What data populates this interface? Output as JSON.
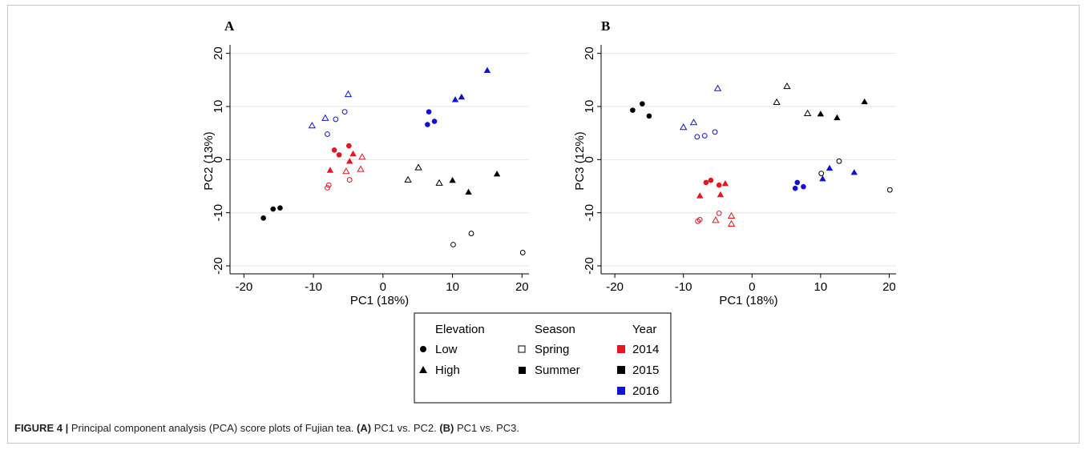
{
  "caption": {
    "label": "FIGURE 4 |",
    "text": " Principal component analysis (PCA) score plots of Fujian tea. ",
    "a_ref": "(A)",
    "a_text": " PC1 vs. PC2. ",
    "b_ref": "(B)",
    "b_text": " PC1 vs. PC3."
  },
  "colors": {
    "2014": "#e8141e",
    "2015": "#000000",
    "2016": "#1010d8",
    "grid": "#e6e6e6"
  },
  "legend": {
    "elevation_title": "Elevation",
    "elevation_items": [
      {
        "label": "Low",
        "icon": "filled-circle"
      },
      {
        "label": "High",
        "icon": "filled-triangle"
      }
    ],
    "season_title": "Season",
    "season_items": [
      {
        "label": "Spring",
        "icon": "hollow-square"
      },
      {
        "label": "Summer",
        "icon": "filled-square"
      }
    ],
    "year_title": "Year",
    "year_items": [
      {
        "label": "2014",
        "color": "#e8141e"
      },
      {
        "label": "2015",
        "color": "#000000"
      },
      {
        "label": "2016",
        "color": "#1010d8"
      }
    ]
  },
  "chart_data": [
    {
      "panel": "A",
      "type": "scatter",
      "xlabel": "PC1 (18%)",
      "ylabel": "PC2 (13%)",
      "xticks": [
        -20,
        -10,
        0,
        10,
        20
      ],
      "yticks": [
        20,
        10,
        0,
        -10,
        -20
      ],
      "xlim": [
        -22,
        21
      ],
      "ylim": [
        -21.5,
        21
      ],
      "grid": true,
      "points": [
        {
          "x": -17.2,
          "y": -11.0,
          "elev": "Low",
          "season": "Summer",
          "year": "2015"
        },
        {
          "x": -15.8,
          "y": -9.3,
          "elev": "Low",
          "season": "Summer",
          "year": "2015"
        },
        {
          "x": -14.8,
          "y": -9.1,
          "elev": "Low",
          "season": "Summer",
          "year": "2015"
        },
        {
          "x": -8.0,
          "y": 4.8,
          "elev": "Low",
          "season": "Spring",
          "year": "2016"
        },
        {
          "x": -6.8,
          "y": 7.6,
          "elev": "Low",
          "season": "Spring",
          "year": "2016"
        },
        {
          "x": -5.5,
          "y": 9.0,
          "elev": "Low",
          "season": "Spring",
          "year": "2016"
        },
        {
          "x": -10.2,
          "y": 6.4,
          "elev": "High",
          "season": "Spring",
          "year": "2016"
        },
        {
          "x": -8.3,
          "y": 7.8,
          "elev": "High",
          "season": "Spring",
          "year": "2016"
        },
        {
          "x": -5.0,
          "y": 12.3,
          "elev": "High",
          "season": "Spring",
          "year": "2016"
        },
        {
          "x": 6.4,
          "y": 6.6,
          "elev": "Low",
          "season": "Summer",
          "year": "2016"
        },
        {
          "x": 6.6,
          "y": 9.0,
          "elev": "Low",
          "season": "Summer",
          "year": "2016"
        },
        {
          "x": 7.4,
          "y": 7.2,
          "elev": "Low",
          "season": "Summer",
          "year": "2016"
        },
        {
          "x": 10.4,
          "y": 11.3,
          "elev": "High",
          "season": "Summer",
          "year": "2016"
        },
        {
          "x": 11.3,
          "y": 11.8,
          "elev": "High",
          "season": "Summer",
          "year": "2016"
        },
        {
          "x": 15.0,
          "y": 16.8,
          "elev": "High",
          "season": "Summer",
          "year": "2016"
        },
        {
          "x": -7.0,
          "y": 1.8,
          "elev": "Low",
          "season": "Summer",
          "year": "2014"
        },
        {
          "x": -6.3,
          "y": 0.9,
          "elev": "Low",
          "season": "Summer",
          "year": "2014"
        },
        {
          "x": -4.9,
          "y": 2.6,
          "elev": "Low",
          "season": "Summer",
          "year": "2014"
        },
        {
          "x": -7.6,
          "y": -2.0,
          "elev": "High",
          "season": "Summer",
          "year": "2014"
        },
        {
          "x": -4.3,
          "y": 1.1,
          "elev": "High",
          "season": "Summer",
          "year": "2014"
        },
        {
          "x": -4.8,
          "y": -0.3,
          "elev": "High",
          "season": "Summer",
          "year": "2014"
        },
        {
          "x": -8.0,
          "y": -5.3,
          "elev": "Low",
          "season": "Spring",
          "year": "2014"
        },
        {
          "x": -7.8,
          "y": -4.8,
          "elev": "Low",
          "season": "Spring",
          "year": "2014"
        },
        {
          "x": -4.8,
          "y": -3.8,
          "elev": "Low",
          "season": "Spring",
          "year": "2014"
        },
        {
          "x": -5.3,
          "y": -2.2,
          "elev": "High",
          "season": "Spring",
          "year": "2014"
        },
        {
          "x": -3.0,
          "y": 0.5,
          "elev": "High",
          "season": "Spring",
          "year": "2014"
        },
        {
          "x": -3.2,
          "y": -1.8,
          "elev": "High",
          "season": "Spring",
          "year": "2014"
        },
        {
          "x": 3.6,
          "y": -3.8,
          "elev": "High",
          "season": "Spring",
          "year": "2015"
        },
        {
          "x": 5.1,
          "y": -1.5,
          "elev": "High",
          "season": "Spring",
          "year": "2015"
        },
        {
          "x": 8.1,
          "y": -4.4,
          "elev": "High",
          "season": "Spring",
          "year": "2015"
        },
        {
          "x": 10.0,
          "y": -3.9,
          "elev": "High",
          "season": "Summer",
          "year": "2015"
        },
        {
          "x": 12.3,
          "y": -6.1,
          "elev": "High",
          "season": "Summer",
          "year": "2015"
        },
        {
          "x": 16.4,
          "y": -2.7,
          "elev": "High",
          "season": "Summer",
          "year": "2015"
        },
        {
          "x": 10.1,
          "y": -16.0,
          "elev": "Low",
          "season": "Spring",
          "year": "2015"
        },
        {
          "x": 12.7,
          "y": -13.9,
          "elev": "Low",
          "season": "Spring",
          "year": "2015"
        },
        {
          "x": 20.1,
          "y": -17.5,
          "elev": "Low",
          "season": "Spring",
          "year": "2015"
        }
      ]
    },
    {
      "panel": "B",
      "type": "scatter",
      "xlabel": "PC1 (18%)",
      "ylabel": "PC3 (12%)",
      "xticks": [
        -20,
        -10,
        0,
        10,
        20
      ],
      "yticks": [
        20,
        10,
        0,
        -10,
        -20
      ],
      "xlim": [
        -22,
        21
      ],
      "ylim": [
        -21.5,
        21
      ],
      "grid": true,
      "points": [
        {
          "x": -17.4,
          "y": 9.3,
          "elev": "Low",
          "season": "Summer",
          "year": "2015"
        },
        {
          "x": -16.0,
          "y": 10.5,
          "elev": "Low",
          "season": "Summer",
          "year": "2015"
        },
        {
          "x": -15.0,
          "y": 8.2,
          "elev": "Low",
          "season": "Summer",
          "year": "2015"
        },
        {
          "x": 3.6,
          "y": 10.8,
          "elev": "High",
          "season": "Spring",
          "year": "2015"
        },
        {
          "x": 5.1,
          "y": 13.8,
          "elev": "High",
          "season": "Spring",
          "year": "2015"
        },
        {
          "x": 8.1,
          "y": 8.7,
          "elev": "High",
          "season": "Spring",
          "year": "2015"
        },
        {
          "x": 10.0,
          "y": 8.6,
          "elev": "High",
          "season": "Summer",
          "year": "2015"
        },
        {
          "x": 12.4,
          "y": 7.9,
          "elev": "High",
          "season": "Summer",
          "year": "2015"
        },
        {
          "x": 16.4,
          "y": 10.9,
          "elev": "High",
          "season": "Summer",
          "year": "2015"
        },
        {
          "x": -10.0,
          "y": 6.1,
          "elev": "High",
          "season": "Spring",
          "year": "2016"
        },
        {
          "x": -8.5,
          "y": 7.0,
          "elev": "High",
          "season": "Spring",
          "year": "2016"
        },
        {
          "x": -5.0,
          "y": 13.4,
          "elev": "High",
          "season": "Spring",
          "year": "2016"
        },
        {
          "x": -8.0,
          "y": 4.3,
          "elev": "Low",
          "season": "Spring",
          "year": "2016"
        },
        {
          "x": -6.9,
          "y": 4.5,
          "elev": "Low",
          "season": "Spring",
          "year": "2016"
        },
        {
          "x": -5.4,
          "y": 5.2,
          "elev": "Low",
          "season": "Spring",
          "year": "2016"
        },
        {
          "x": -6.7,
          "y": -4.3,
          "elev": "Low",
          "season": "Summer",
          "year": "2014"
        },
        {
          "x": -6.0,
          "y": -3.9,
          "elev": "Low",
          "season": "Summer",
          "year": "2014"
        },
        {
          "x": -4.8,
          "y": -4.8,
          "elev": "Low",
          "season": "Summer",
          "year": "2014"
        },
        {
          "x": -7.6,
          "y": -6.8,
          "elev": "High",
          "season": "Summer",
          "year": "2014"
        },
        {
          "x": -4.6,
          "y": -6.6,
          "elev": "High",
          "season": "Summer",
          "year": "2014"
        },
        {
          "x": -3.9,
          "y": -4.5,
          "elev": "High",
          "season": "Summer",
          "year": "2014"
        },
        {
          "x": -7.9,
          "y": -11.6,
          "elev": "Low",
          "season": "Spring",
          "year": "2014"
        },
        {
          "x": -7.6,
          "y": -11.3,
          "elev": "Low",
          "season": "Spring",
          "year": "2014"
        },
        {
          "x": -4.8,
          "y": -10.1,
          "elev": "Low",
          "season": "Spring",
          "year": "2014"
        },
        {
          "x": -5.3,
          "y": -11.4,
          "elev": "High",
          "season": "Spring",
          "year": "2014"
        },
        {
          "x": -3.0,
          "y": -10.6,
          "elev": "High",
          "season": "Spring",
          "year": "2014"
        },
        {
          "x": -3.0,
          "y": -12.1,
          "elev": "High",
          "season": "Spring",
          "year": "2014"
        },
        {
          "x": 6.3,
          "y": -5.4,
          "elev": "Low",
          "season": "Summer",
          "year": "2016"
        },
        {
          "x": 6.6,
          "y": -4.3,
          "elev": "Low",
          "season": "Summer",
          "year": "2016"
        },
        {
          "x": 7.5,
          "y": -5.1,
          "elev": "Low",
          "season": "Summer",
          "year": "2016"
        },
        {
          "x": 10.3,
          "y": -3.6,
          "elev": "High",
          "season": "Summer",
          "year": "2016"
        },
        {
          "x": 11.3,
          "y": -1.6,
          "elev": "High",
          "season": "Summer",
          "year": "2016"
        },
        {
          "x": 14.9,
          "y": -2.4,
          "elev": "High",
          "season": "Summer",
          "year": "2016"
        },
        {
          "x": 10.1,
          "y": -2.6,
          "elev": "Low",
          "season": "Spring",
          "year": "2015"
        },
        {
          "x": 12.7,
          "y": -0.3,
          "elev": "Low",
          "season": "Spring",
          "year": "2015"
        },
        {
          "x": 20.1,
          "y": -5.7,
          "elev": "Low",
          "season": "Spring",
          "year": "2015"
        }
      ]
    }
  ]
}
